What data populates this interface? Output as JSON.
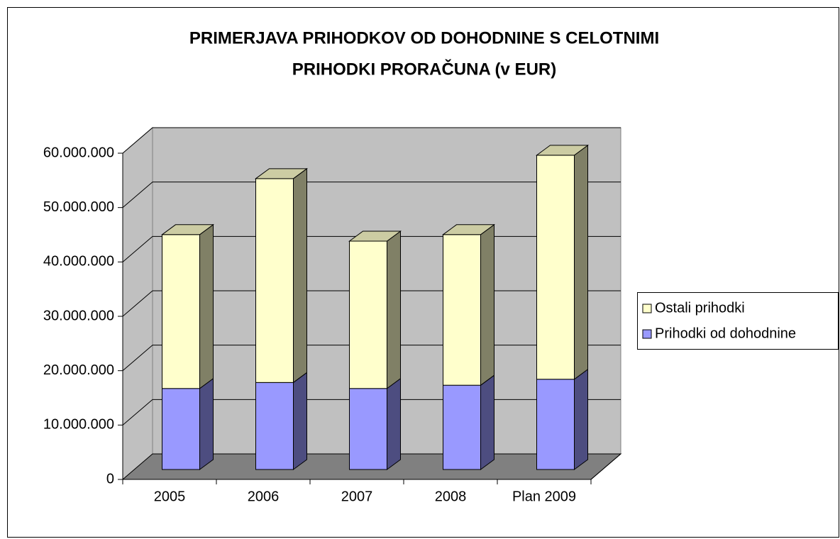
{
  "chart_data": {
    "type": "bar3d_stacked",
    "title": [
      "PRIMERJAVA PRIHODKOV OD DOHODNINE S CELOTNIMI",
      "PRIHODKI PRORAČUNA (v EUR)"
    ],
    "categories": [
      "2005",
      "2006",
      "2007",
      "2008",
      "Plan 2009"
    ],
    "series": [
      {
        "name": "Prihodki od dohodnine",
        "color": "#9999ff",
        "values": [
          14900000,
          16000000,
          14900000,
          15500000,
          16600000
        ]
      },
      {
        "name": "Ostali prihodki",
        "color": "#ffffcc",
        "values": [
          28300000,
          37500000,
          27100000,
          27700000,
          41200000
        ]
      }
    ],
    "ylim": [
      0,
      60000000
    ],
    "yticks": [
      0,
      {
        "value": 10000000,
        "label": "10.000.000"
      },
      {
        "value": 20000000,
        "label": "20.000.000"
      },
      {
        "value": 30000000,
        "label": "30.000.000"
      },
      {
        "value": 40000000,
        "label": "40.000.000"
      },
      {
        "value": 50000000,
        "label": "50.000.000"
      },
      {
        "value": 60000000,
        "label": "60.000.000"
      }
    ],
    "grid": true,
    "legend": "right"
  }
}
